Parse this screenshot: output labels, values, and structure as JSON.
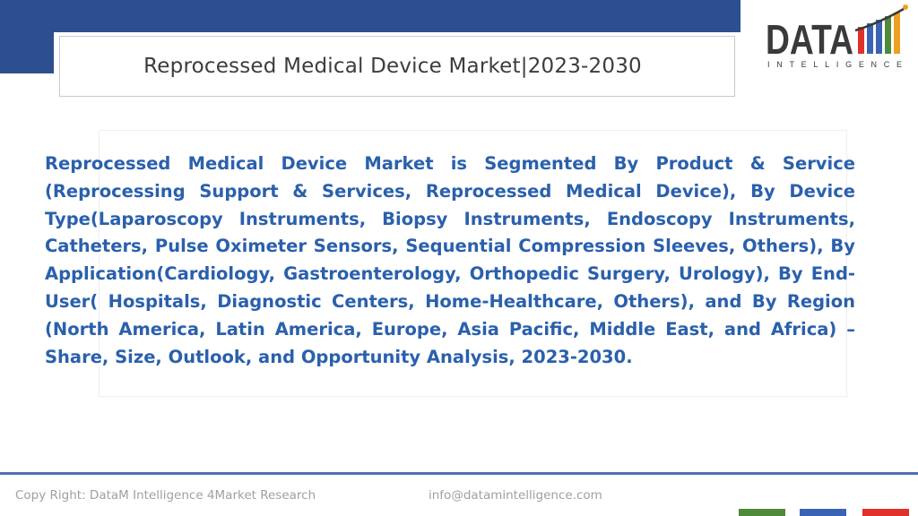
{
  "header": {
    "title": "Reprocessed Medical Device Market|2023-2030"
  },
  "logo": {
    "word": "DATA",
    "tagline": "INTELLIGENCE",
    "colors": {
      "dark": "#3a3a3a",
      "bar_red": "#e0312b",
      "bar_blue": "#3b63b5",
      "bar_green": "#4e8a3a",
      "bar_orange": "#f0a020"
    }
  },
  "body": {
    "text": "Reprocessed Medical Device Market is Segmented By Product & Service (Reprocessing Support & Services, Reprocessed Medical Device), By Device Type(Laparoscopy Instruments, Biopsy Instruments, Endoscopy Instruments, Catheters, Pulse Oximeter Sensors, Sequential Compression Sleeves, Others), By Application(Cardiology, Gastroenterology, Orthopedic Surgery, Urology), By End-User( Hospitals, Diagnostic Centers, Home-Healthcare, Others), and By Region (North America, Latin America, Europe, Asia Pacific, Middle East, and Africa) – Share, Size, Outlook, and Opportunity Analysis, 2023-2030."
  },
  "footer": {
    "copyright": "Copy Right: DataM Intelligence 4Market Research",
    "email": "info@datamintelligence.com"
  },
  "theme": {
    "primary_blue": "#2e4f8f",
    "text_blue": "#2a60ad",
    "footer_gray": "#a0a0a0"
  }
}
